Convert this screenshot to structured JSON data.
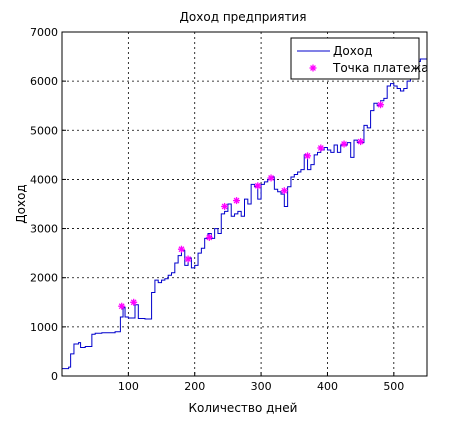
{
  "chart_data": {
    "type": "line",
    "title": "Доход предприятия",
    "xlabel": "Количество дней",
    "ylabel": "Доход",
    "xlim": [
      0,
      550
    ],
    "ylim": [
      0,
      7000
    ],
    "xticks": [
      100,
      200,
      300,
      400,
      500
    ],
    "yticks": [
      0,
      1000,
      2000,
      3000,
      4000,
      5000,
      6000,
      7000
    ],
    "grid": true,
    "legend_position": "top-right",
    "series": [
      {
        "name": "Доход",
        "style": "step-line",
        "color": "#0000cc",
        "x": [
          0,
          10,
          13,
          18,
          25,
          28,
          35,
          45,
          50,
          60,
          80,
          88,
          92,
          95,
          100,
          110,
          115,
          125,
          130,
          135,
          140,
          145,
          150,
          155,
          160,
          165,
          170,
          175,
          180,
          185,
          190,
          195,
          200,
          205,
          210,
          215,
          220,
          225,
          230,
          235,
          240,
          245,
          250,
          255,
          260,
          265,
          270,
          275,
          280,
          285,
          290,
          295,
          300,
          305,
          310,
          315,
          320,
          325,
          330,
          335,
          340,
          345,
          350,
          355,
          360,
          365,
          370,
          375,
          380,
          385,
          390,
          395,
          400,
          405,
          410,
          415,
          420,
          425,
          430,
          435,
          440,
          445,
          450,
          455,
          460,
          465,
          470,
          475,
          480,
          485,
          490,
          495,
          500,
          505,
          510,
          515,
          520,
          525,
          530,
          535,
          540,
          545
        ],
        "y": [
          150,
          180,
          450,
          650,
          680,
          580,
          600,
          850,
          870,
          880,
          900,
          1200,
          1400,
          1200,
          1180,
          1450,
          1170,
          1160,
          1160,
          1700,
          1950,
          1900,
          1950,
          1980,
          2050,
          2100,
          2300,
          2450,
          2550,
          2250,
          2400,
          2200,
          2250,
          2500,
          2600,
          2800,
          2900,
          2800,
          3000,
          2900,
          3300,
          3350,
          3500,
          3250,
          3300,
          3350,
          3250,
          3600,
          3500,
          3900,
          3850,
          3600,
          3900,
          3950,
          4000,
          4050,
          3800,
          3750,
          3700,
          3450,
          3850,
          4050,
          4100,
          4150,
          4200,
          4500,
          4200,
          4300,
          4500,
          4550,
          4600,
          4650,
          4600,
          4550,
          4700,
          4550,
          4700,
          4700,
          4750,
          4450,
          4800,
          4750,
          4750,
          5100,
          5050,
          5400,
          5550,
          5500,
          5600,
          5650,
          5900,
          5950,
          5900,
          5850,
          5800,
          5850,
          6000,
          6050,
          6100,
          6400,
          6450,
          6450
        ]
      },
      {
        "name": "Точка платежа",
        "style": "markers",
        "marker": "*",
        "color": "#ff00ff",
        "x": [
          90,
          108,
          180,
          190,
          222,
          245,
          263,
          295,
          315,
          335,
          370,
          390,
          425,
          450,
          480
        ],
        "y": [
          1420,
          1500,
          2580,
          2380,
          2820,
          3450,
          3570,
          3870,
          4030,
          3770,
          4480,
          4640,
          4720,
          4770,
          5520
        ]
      }
    ]
  }
}
